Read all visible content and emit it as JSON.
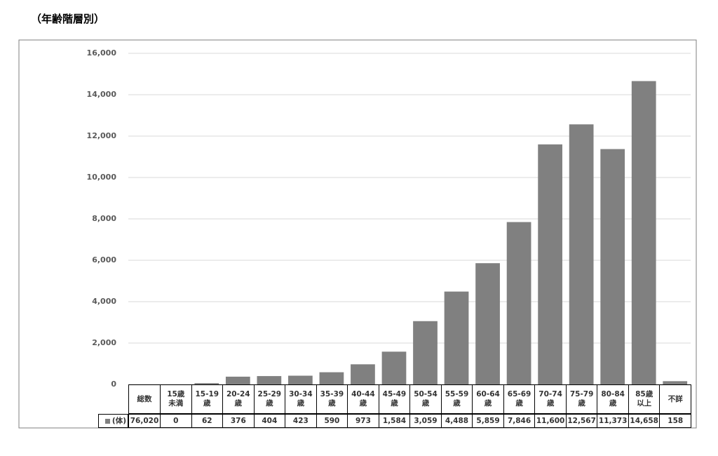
{
  "title": "（年齢階層別）",
  "chart_data": {
    "type": "bar",
    "total_label": "総数",
    "total": 76020,
    "total_label_printed": "76,020",
    "categories": [
      "15歳\n未満",
      "15-19\n歳",
      "20-24\n歳",
      "25-29\n歳",
      "30-34\n歳",
      "35-39\n歳",
      "40-44\n歳",
      "45-49\n歳",
      "50-54\n歳",
      "55-59\n歳",
      "60-64\n歳",
      "65-69\n歳",
      "70-74\n歳",
      "75-79\n歳",
      "80-84\n歳",
      "85歳\n以上",
      "不詳"
    ],
    "series": [
      {
        "name": "(体)",
        "color": "#808080",
        "values": [
          0,
          62,
          376,
          404,
          423,
          590,
          973,
          1584,
          3059,
          4488,
          5859,
          7846,
          11600,
          12567,
          11373,
          14658,
          158
        ],
        "value_labels": [
          "0",
          "62",
          "376",
          "404",
          "423",
          "590",
          "973",
          "1,584",
          "3,059",
          "4,488",
          "5,859",
          "7,846",
          "11,600",
          "12,567",
          "11,373",
          "14,658",
          "158"
        ]
      }
    ],
    "ylim": [
      0,
      16000
    ],
    "yticks": [
      {
        "value": 0,
        "label": "0"
      },
      {
        "value": 2000,
        "label": "2,000"
      },
      {
        "value": 4000,
        "label": "4,000"
      },
      {
        "value": 6000,
        "label": "6,000"
      },
      {
        "value": 8000,
        "label": "8,000"
      },
      {
        "value": 10000,
        "label": "10,000"
      },
      {
        "value": 12000,
        "label": "12,000"
      },
      {
        "value": 14000,
        "label": "14,000"
      },
      {
        "value": 16000,
        "label": "16,000"
      }
    ],
    "grid": true
  }
}
